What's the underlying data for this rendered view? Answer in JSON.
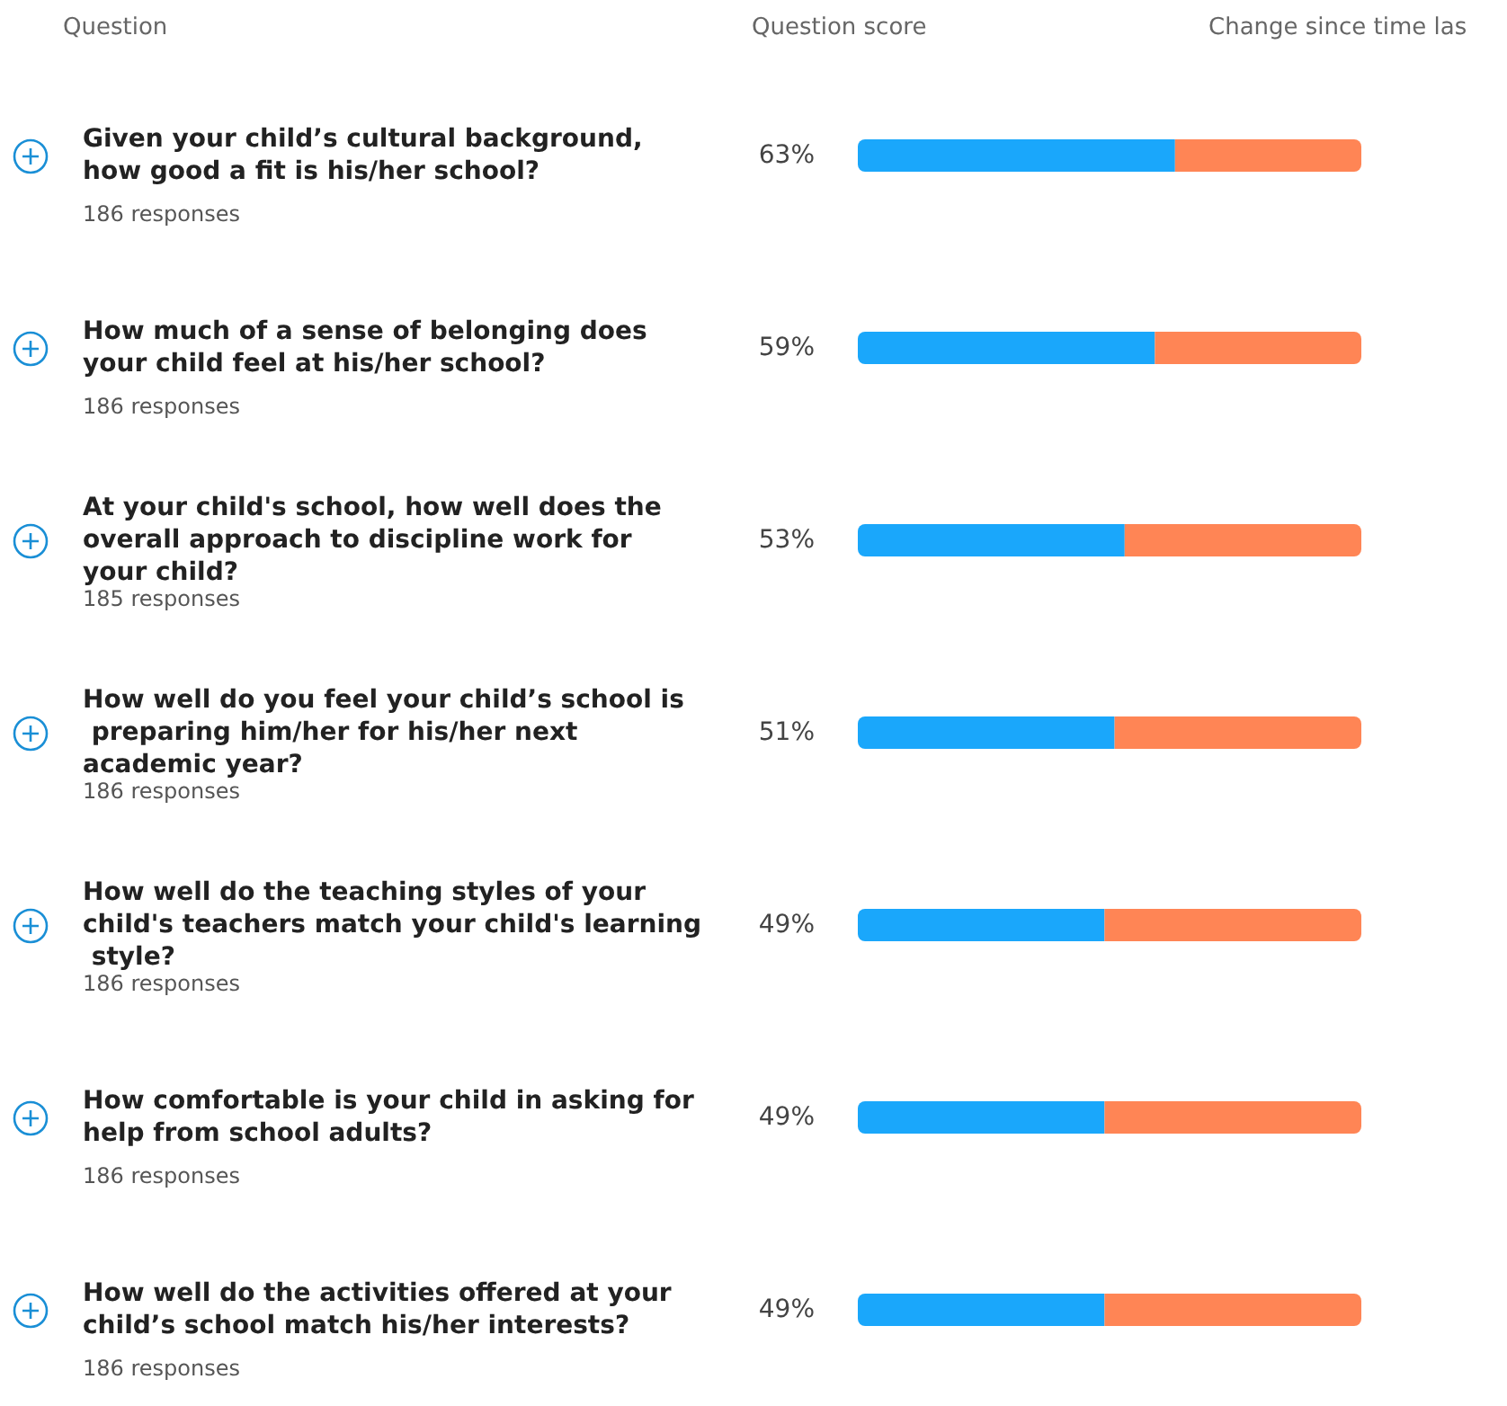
{
  "chart_data": {
    "type": "bar",
    "orientation": "horizontal",
    "stacked": true,
    "ylabel": "Question",
    "xlabel": "Question score",
    "categories": [
      "Given your child’s cultural background, how good a fit is his/her school?",
      "How much of a sense of belonging does your child feel at his/her school?",
      "At your child's school, how well does the overall approach to discipline work for your child?",
      "How well do you feel your child’s school is preparing him/her for his/her next academic year?",
      "How well do the teaching styles of your child's teachers match your child's learning style?",
      "How comfortable is your child in asking for help from school adults?",
      "How well do the activities offered at your child’s school match his/her interests?"
    ],
    "series": [
      {
        "color": "#1aa7fb",
        "values": [
          63,
          59,
          53,
          51,
          49,
          49,
          49
        ],
        "value_labels": [
          "63%",
          "59%",
          "53%",
          "51%",
          "49%",
          "49%",
          "49%"
        ]
      },
      {
        "color": "#ff8555",
        "values": [
          37,
          41,
          47,
          49,
          51,
          51,
          51
        ]
      }
    ],
    "xlim": [
      0,
      100
    ],
    "tick_labels": "y",
    "annotations": [
      "Change since time las",
      "186 responses",
      "186 responses",
      "185 responses",
      "186 responses",
      "186 responses",
      "186 responses",
      "186 responses"
    ]
  }
}
